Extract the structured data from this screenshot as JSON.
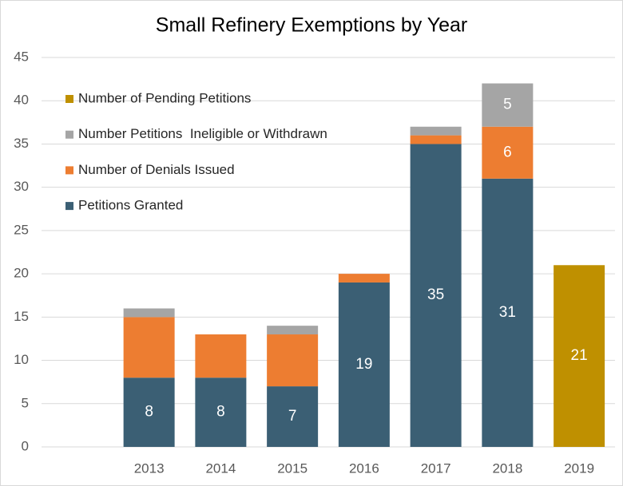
{
  "chart_data": {
    "type": "stacked_bar",
    "title": "Small Refinery Exemptions by Year",
    "categories": [
      null,
      "2013",
      "2014",
      "2015",
      "2016",
      "2017",
      "2018",
      "2019"
    ],
    "series": [
      {
        "name": "Petitions Granted",
        "color": "#3b5f74",
        "values": [
          null,
          8,
          8,
          7,
          19,
          35,
          31,
          null
        ],
        "value_labels": [
          null,
          "8",
          "8",
          "7",
          "19",
          "35",
          "31",
          null
        ]
      },
      {
        "name": "Number of Denials Issued",
        "color": "#ed7d31",
        "values": [
          null,
          7,
          5,
          6,
          1,
          1,
          6,
          null
        ],
        "value_labels": [
          null,
          null,
          null,
          null,
          null,
          null,
          "6",
          null
        ]
      },
      {
        "name": "Number Petitions  Ineligible or Withdrawn",
        "color": "#a5a5a5",
        "values": [
          null,
          1,
          0,
          1,
          0,
          1,
          5,
          null
        ],
        "value_labels": [
          null,
          null,
          null,
          null,
          null,
          null,
          "5",
          null
        ]
      },
      {
        "name": "Number of Pending Petitions",
        "color": "#bf9000",
        "values": [
          null,
          null,
          null,
          null,
          null,
          null,
          null,
          21
        ],
        "value_labels": [
          null,
          null,
          null,
          null,
          null,
          null,
          null,
          "21"
        ]
      }
    ],
    "ylim": [
      0,
      45
    ],
    "yticks": [
      0,
      5,
      10,
      15,
      20,
      25,
      30,
      35,
      40,
      45
    ],
    "grid": true,
    "legend": "upper left"
  }
}
